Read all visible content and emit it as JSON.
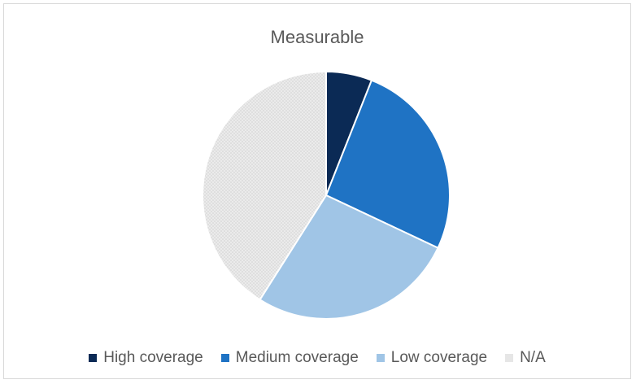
{
  "chart_data": {
    "type": "pie",
    "title": "Measurable",
    "legend_position": "bottom",
    "slices": [
      {
        "label": "High coverage",
        "value": 6,
        "color": "#0b2a55"
      },
      {
        "label": "Medium coverage",
        "value": 26,
        "color": "#1f73c4"
      },
      {
        "label": "Low coverage",
        "value": 27,
        "color": "#a0c5e6"
      },
      {
        "label": "N/A",
        "value": 41,
        "color": "#e6e6e6"
      }
    ]
  }
}
